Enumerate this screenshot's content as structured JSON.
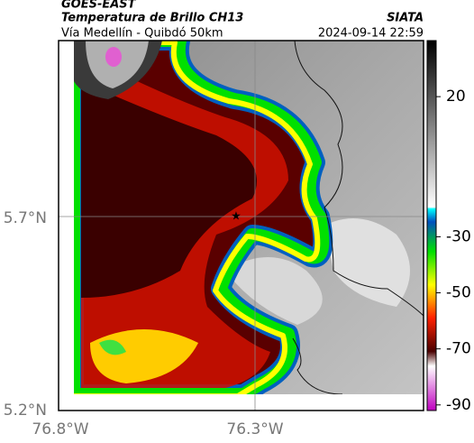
{
  "header": {
    "satellite": "GOES-EAST",
    "product": "Temperatura de Brillo CH13",
    "route": "Vía Medellín - Quibdó 50km",
    "source": "SIATA",
    "timestamp": "2024-09-14 22:59"
  },
  "axes": {
    "y_labels": [
      "5.7°N",
      "5.2°N"
    ],
    "x_labels": [
      "76.8°W",
      "76.3°W"
    ]
  },
  "colorbar": {
    "ticks": [
      20,
      -30,
      -50,
      -70,
      -90
    ],
    "lim": [
      -92,
      40
    ]
  }
}
